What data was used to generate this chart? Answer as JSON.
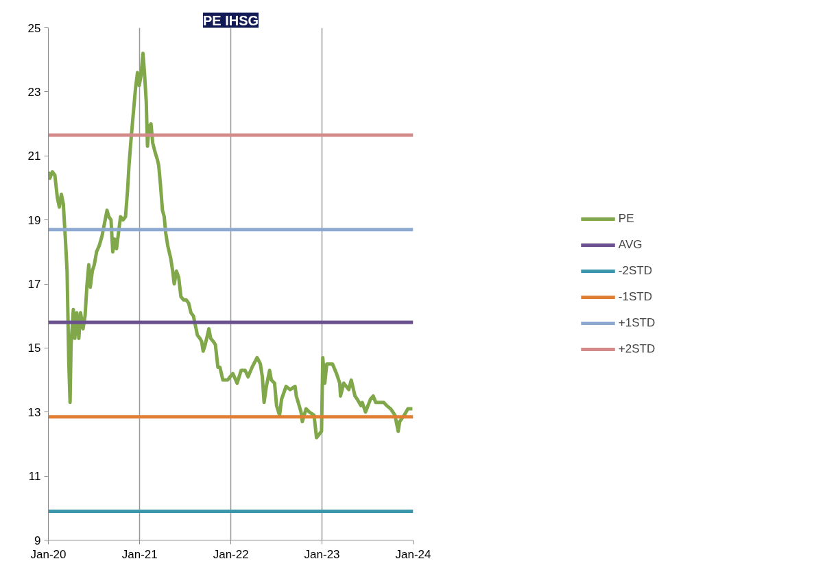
{
  "chart_data": {
    "type": "line",
    "title": "PE IHSG",
    "x": [
      "2020-01-01",
      "2020-01-07",
      "2020-01-17",
      "2020-01-27",
      "2020-02-06",
      "2020-02-14",
      "2020-02-22",
      "2020-03-01",
      "2020-03-10",
      "2020-03-16",
      "2020-03-23",
      "2020-03-28",
      "2020-04-01",
      "2020-04-10",
      "2020-04-16",
      "2020-04-24",
      "2020-05-02",
      "2020-05-09",
      "2020-05-19",
      "2020-05-27",
      "2020-06-04",
      "2020-06-11",
      "2020-06-17",
      "2020-06-25",
      "2020-07-03",
      "2020-07-12",
      "2020-07-23",
      "2020-08-03",
      "2020-08-13",
      "2020-08-23",
      "2020-08-30",
      "2020-09-08",
      "2020-09-15",
      "2020-09-23",
      "2020-09-30",
      "2020-10-08",
      "2020-10-16",
      "2020-10-26",
      "2020-11-05",
      "2020-11-13",
      "2020-11-19",
      "2020-11-27",
      "2020-12-06",
      "2020-12-15",
      "2020-12-23",
      "2020-12-30",
      "2021-01-06",
      "2021-01-14",
      "2021-01-20",
      "2021-01-27",
      "2021-02-01",
      "2021-02-07",
      "2021-02-15",
      "2021-02-22",
      "2021-03-04",
      "2021-03-12",
      "2021-03-18",
      "2021-03-25",
      "2021-04-02",
      "2021-04-09",
      "2021-04-15",
      "2021-04-23",
      "2021-05-05",
      "2021-05-13",
      "2021-05-19",
      "2021-05-28",
      "2021-06-06",
      "2021-06-15",
      "2021-06-26",
      "2021-07-06",
      "2021-07-16",
      "2021-07-25",
      "2021-08-04",
      "2021-08-12",
      "2021-08-20",
      "2021-08-30",
      "2021-09-06",
      "2021-09-12",
      "2021-09-20",
      "2021-09-29",
      "2021-10-05",
      "2021-10-12",
      "2021-10-23",
      "2021-10-31",
      "2021-11-10",
      "2021-11-18",
      "2021-11-30",
      "2021-12-09",
      "2021-12-19",
      "2021-12-29",
      "2022-01-09",
      "2022-01-26",
      "2022-02-11",
      "2022-02-27",
      "2022-03-11",
      "2022-03-27",
      "2022-04-16",
      "2022-04-29",
      "2022-05-07",
      "2022-05-14",
      "2022-05-23",
      "2022-06-05",
      "2022-06-12",
      "2022-06-25",
      "2022-07-03",
      "2022-07-15",
      "2022-07-23",
      "2022-08-10",
      "2022-08-26",
      "2022-09-15",
      "2022-09-20",
      "2022-10-09",
      "2022-10-14",
      "2022-10-29",
      "2022-11-11",
      "2022-11-30",
      "2022-12-10",
      "2022-12-30",
      "2023-01-04",
      "2023-01-12",
      "2023-01-20",
      "2023-02-12",
      "2023-02-28",
      "2023-03-13",
      "2023-03-16",
      "2023-03-29",
      "2023-04-18",
      "2023-04-28",
      "2023-05-13",
      "2023-05-22",
      "2023-06-06",
      "2023-06-11",
      "2023-06-24",
      "2023-07-14",
      "2023-07-25",
      "2023-08-04",
      "2023-08-20",
      "2023-09-05",
      "2023-09-17",
      "2023-10-03",
      "2023-10-20",
      "2023-11-02",
      "2023-11-08",
      "2023-11-26",
      "2023-12-11",
      "2023-12-29"
    ],
    "series": [
      {
        "name": "PE",
        "color": "#80a84a",
        "values": [
          20.5,
          20.3,
          20.5,
          20.4,
          19.7,
          19.4,
          19.8,
          19.5,
          18.3,
          17.4,
          14.5,
          13.3,
          15.1,
          16.2,
          15.3,
          16.1,
          15.3,
          16.1,
          15.6,
          16.0,
          17.0,
          17.6,
          16.9,
          17.4,
          17.6,
          18.0,
          18.2,
          18.5,
          18.9,
          19.3,
          19.1,
          19.0,
          18.0,
          18.4,
          18.1,
          18.6,
          19.1,
          19.0,
          19.1,
          19.9,
          20.7,
          21.5,
          22.3,
          23.1,
          23.6,
          23.2,
          23.5,
          24.2,
          23.6,
          22.7,
          21.3,
          21.9,
          22.0,
          21.4,
          21.1,
          20.9,
          20.7,
          20.1,
          19.3,
          19.1,
          18.6,
          18.2,
          17.8,
          17.4,
          17.0,
          17.4,
          17.2,
          16.6,
          16.5,
          16.5,
          16.4,
          16.1,
          16.0,
          15.7,
          15.4,
          15.3,
          15.2,
          14.9,
          15.1,
          15.4,
          15.6,
          15.3,
          15.2,
          15.1,
          14.4,
          14.4,
          14.0,
          14.0,
          14.0,
          14.1,
          14.2,
          13.9,
          14.3,
          14.3,
          14.1,
          14.4,
          14.7,
          14.5,
          14.1,
          13.3,
          13.8,
          14.3,
          14.0,
          13.9,
          13.2,
          12.9,
          13.4,
          13.8,
          13.7,
          13.8,
          13.5,
          13.0,
          12.7,
          13.1,
          13.0,
          12.9,
          12.2,
          12.4,
          14.7,
          13.9,
          14.5,
          14.5,
          14.2,
          13.9,
          13.5,
          13.9,
          13.7,
          14.0,
          13.5,
          13.4,
          13.2,
          13.3,
          13.0,
          13.4,
          13.5,
          13.3,
          13.3,
          13.3,
          13.2,
          13.1,
          12.9,
          12.4,
          12.7,
          12.9,
          13.1,
          13.1
        ]
      }
    ],
    "ref_lines": [
      {
        "axis": "y",
        "value": 15.8,
        "label": "AVG",
        "color": "#6b5090"
      },
      {
        "axis": "y",
        "value": 9.9,
        "label": "-2STD",
        "color": "#3a97ab"
      },
      {
        "axis": "y",
        "value": 12.85,
        "label": "-1STD",
        "color": "#e07f33"
      },
      {
        "axis": "y",
        "value": 18.7,
        "label": "+1STD",
        "color": "#8ea9d1"
      },
      {
        "axis": "y",
        "value": 21.65,
        "label": "+2STD",
        "color": "#d28a8a"
      }
    ],
    "xlim": [
      "2020-01-01",
      "2024-01-01"
    ],
    "xticks": [
      {
        "value": "2020-01-01",
        "label": "Jan-20"
      },
      {
        "value": "2021-01-01",
        "label": "Jan-21"
      },
      {
        "value": "2022-01-01",
        "label": "Jan-22"
      },
      {
        "value": "2023-01-01",
        "label": "Jan-23"
      },
      {
        "value": "2024-01-01",
        "label": "Jan-24"
      }
    ],
    "ylim": [
      9,
      25
    ],
    "yticks": [
      9,
      11,
      13,
      15,
      17,
      19,
      21,
      23,
      25
    ],
    "grid": "x",
    "legend": "right",
    "marker": "none",
    "line_style": "solid"
  }
}
